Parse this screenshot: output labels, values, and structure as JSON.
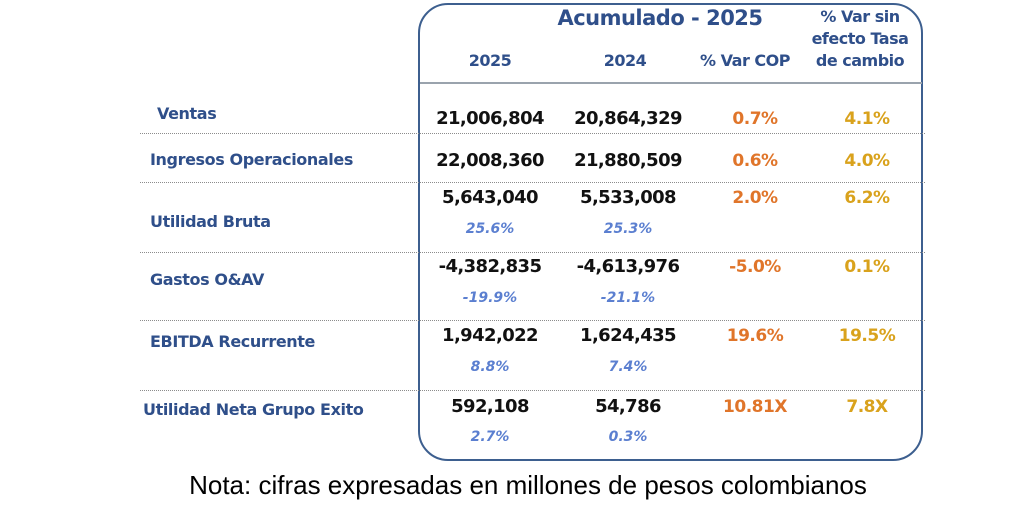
{
  "header": {
    "title": "Acumulado - 2025",
    "col_2025": "2025",
    "col_2024": "2024",
    "col_var_cop": "% Var COP",
    "col_var_sin": [
      "% Var sin",
      "efecto Tasa",
      "de cambio"
    ]
  },
  "colors": {
    "label": "#2f4f8a",
    "var_cop": "#e0752a",
    "var_sin": "#d9a21c",
    "margin_pct": "#5b7fd0"
  },
  "rows": [
    {
      "label": "Ventas",
      "v2025": "21,006,804",
      "v2024": "20,864,329",
      "var_cop": "0.7%",
      "var_sin": "4.1%"
    },
    {
      "label": "Ingresos Operacionales",
      "v2025": "22,008,360",
      "v2024": "21,880,509",
      "var_cop": "0.6%",
      "var_sin": "4.0%"
    },
    {
      "label": "Utilidad Bruta",
      "v2025": "5,643,040",
      "v2024": "5,533,008",
      "var_cop": "2.0%",
      "var_sin": "6.2%",
      "m2025": "25.6%",
      "m2024": "25.3%"
    },
    {
      "label": "Gastos O&AV",
      "v2025": "-4,382,835",
      "v2024": "-4,613,976",
      "var_cop": "-5.0%",
      "var_sin": "0.1%",
      "m2025": "-19.9%",
      "m2024": "-21.1%"
    },
    {
      "label": "EBITDA Recurrente",
      "v2025": "1,942,022",
      "v2024": "1,624,435",
      "var_cop": "19.6%",
      "var_sin": "19.5%",
      "m2025": "8.8%",
      "m2024": "7.4%"
    },
    {
      "label": "Utilidad Neta Grupo Exito",
      "v2025": "592,108",
      "v2024": "54,786",
      "var_cop": "10.81X",
      "var_sin": "7.8X",
      "m2025": "2.7%",
      "m2024": "0.3%"
    }
  ],
  "note": "Nota: cifras expresadas en millones de pesos colombianos"
}
